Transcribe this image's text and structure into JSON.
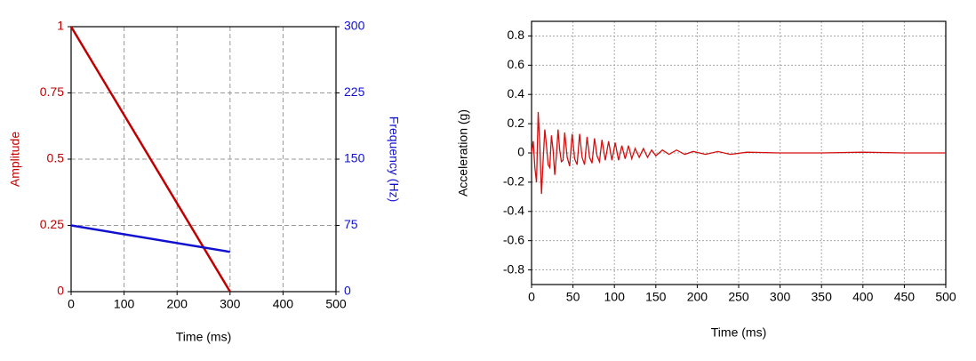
{
  "chart_data": [
    {
      "type": "line",
      "xlabel": "Time (ms)",
      "ylabel": "Amplitude",
      "y2label": "Frequency (Hz)",
      "x": [
        0,
        300
      ],
      "series": [
        {
          "name": "Amplitude",
          "color": "#c00000",
          "values": [
            1,
            0
          ]
        },
        {
          "name": "Frequency",
          "color": "#1010d0",
          "values": [
            75,
            45
          ],
          "axis": "y2"
        }
      ],
      "xlim": [
        0,
        500
      ],
      "xticks": [
        0,
        100,
        200,
        300,
        400,
        500
      ],
      "ylim": [
        0,
        1
      ],
      "yticks": [
        0,
        0.25,
        0.5,
        0.75,
        1
      ],
      "y2lim": [
        0,
        300
      ],
      "y2ticks": [
        0,
        75,
        150,
        225,
        300
      ],
      "grid": true
    },
    {
      "type": "line",
      "xlabel": "Time (ms)",
      "ylabel": "Acceleration (g)",
      "x": [
        0,
        2,
        4,
        6,
        8,
        10,
        12,
        14,
        16,
        18,
        20,
        22,
        24,
        26,
        28,
        30,
        32,
        34,
        36,
        38,
        40,
        43,
        46,
        49,
        52,
        55,
        58,
        61,
        64,
        67,
        70,
        73,
        76,
        79,
        82,
        85,
        89,
        93,
        97,
        101,
        105,
        109,
        113,
        117,
        121,
        125,
        130,
        135,
        140,
        145,
        150,
        158,
        166,
        175,
        185,
        195,
        210,
        225,
        240,
        260,
        300,
        350,
        400,
        450,
        500
      ],
      "series": [
        {
          "color": "#d01010",
          "values": [
            0,
            0.08,
            -0.1,
            -0.2,
            0.28,
            0.05,
            -0.28,
            -0.05,
            0.16,
            0.05,
            -0.08,
            -0.1,
            0.12,
            0.02,
            -0.15,
            -0.02,
            0.16,
            0.02,
            -0.06,
            -0.05,
            0.14,
            -0.03,
            -0.09,
            0.13,
            -0.04,
            -0.08,
            0.13,
            -0.03,
            -0.08,
            0.11,
            -0.03,
            -0.07,
            0.1,
            -0.02,
            -0.06,
            0.09,
            -0.05,
            0.08,
            -0.05,
            0.07,
            -0.05,
            0.05,
            -0.04,
            0.05,
            -0.04,
            0.03,
            -0.03,
            0.03,
            -0.03,
            0.02,
            -0.02,
            0.02,
            -0.01,
            0.02,
            -0.01,
            0.01,
            -0.01,
            0.01,
            -0.01,
            0.005,
            0,
            0,
            0.005,
            0,
            0
          ]
        }
      ],
      "xlim": [
        0,
        500
      ],
      "xticks": [
        0,
        50,
        100,
        150,
        200,
        250,
        300,
        350,
        400,
        450,
        500
      ],
      "ylim": [
        -0.9,
        0.9
      ],
      "yticks": [
        -0.8,
        -0.6,
        -0.4,
        -0.2,
        0,
        0.2,
        0.4,
        0.6,
        0.8
      ],
      "grid": true
    }
  ]
}
